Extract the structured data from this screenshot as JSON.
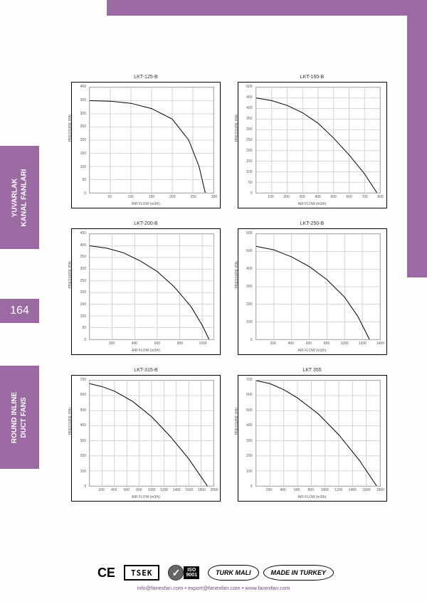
{
  "theme": {
    "accent": "#9b6aa3",
    "accent_dark": "#7a4b8a",
    "page_bg": "#fdfdfb",
    "grid_color": "#cccccc",
    "curve_color": "#000000",
    "chart_border": "#000000"
  },
  "page_number": "164",
  "sidebar": {
    "tab1_line1": "YUVARLAK",
    "tab1_line2": "KANAL FANLARI",
    "tab2_line1": "ROUND INLINE",
    "tab2_line2": "DUCT FANS"
  },
  "axis_labels": {
    "y": "PRESSURE (PA)",
    "x": "AIR FLOW (m3/h)"
  },
  "charts": [
    {
      "title": "LKT-125-B",
      "ylim": [
        0,
        400
      ],
      "ytick_step": 50,
      "xlim": [
        0,
        300
      ],
      "xtick_step": 50,
      "x_tick_start": 50,
      "curve": [
        [
          0,
          350
        ],
        [
          50,
          348
        ],
        [
          100,
          340
        ],
        [
          150,
          320
        ],
        [
          200,
          280
        ],
        [
          240,
          200
        ],
        [
          265,
          100
        ],
        [
          280,
          0
        ]
      ]
    },
    {
      "title": "LKT-160-B",
      "ylim": [
        0,
        500
      ],
      "ytick_step": 50,
      "xlim": [
        0,
        800
      ],
      "xtick_step": 100,
      "x_tick_start": 100,
      "curve": [
        [
          0,
          450
        ],
        [
          100,
          438
        ],
        [
          200,
          415
        ],
        [
          300,
          380
        ],
        [
          400,
          330
        ],
        [
          500,
          260
        ],
        [
          600,
          180
        ],
        [
          700,
          90
        ],
        [
          780,
          0
        ]
      ]
    },
    {
      "title": "LKT-200-B",
      "ylim": [
        0,
        450
      ],
      "ytick_step": 50,
      "xlim": [
        0,
        1100
      ],
      "xtick_step": 200,
      "x_tick_start": 200,
      "curve": [
        [
          0,
          400
        ],
        [
          150,
          390
        ],
        [
          300,
          370
        ],
        [
          450,
          335
        ],
        [
          600,
          290
        ],
        [
          750,
          225
        ],
        [
          900,
          140
        ],
        [
          1000,
          60
        ],
        [
          1060,
          0
        ]
      ]
    },
    {
      "title": "LKT-250-B",
      "ylim": [
        0,
        600
      ],
      "ytick_step": 100,
      "xlim": [
        0,
        1400
      ],
      "xtick_step": 200,
      "x_tick_start": 200,
      "curve": [
        [
          0,
          530
        ],
        [
          200,
          510
        ],
        [
          400,
          470
        ],
        [
          600,
          415
        ],
        [
          800,
          340
        ],
        [
          1000,
          240
        ],
        [
          1150,
          130
        ],
        [
          1280,
          0
        ]
      ]
    },
    {
      "title": "LKT-315-B",
      "ylim": [
        0,
        700
      ],
      "ytick_step": 100,
      "xlim": [
        0,
        2000
      ],
      "xtick_step": 200,
      "x_tick_start": 200,
      "curve": [
        [
          0,
          680
        ],
        [
          200,
          660
        ],
        [
          400,
          630
        ],
        [
          700,
          560
        ],
        [
          1000,
          460
        ],
        [
          1300,
          330
        ],
        [
          1600,
          180
        ],
        [
          1900,
          0
        ]
      ]
    },
    {
      "title": "LKT 355",
      "ylim": [
        0,
        700
      ],
      "ytick_step": 100,
      "xlim": [
        0,
        1800
      ],
      "xtick_step": 200,
      "x_tick_start": 200,
      "curve": [
        [
          0,
          700
        ],
        [
          200,
          680
        ],
        [
          400,
          640
        ],
        [
          600,
          585
        ],
        [
          900,
          480
        ],
        [
          1200,
          340
        ],
        [
          1500,
          170
        ],
        [
          1750,
          0
        ]
      ]
    }
  ],
  "certifications": {
    "ce": "CE",
    "tsek": "TSEK",
    "iso_line1": "ISO",
    "iso_line2": "9001",
    "turk_mali": "TURK MALI",
    "made_in_turkey": "MADE IN TURKEY"
  },
  "contact": "info@fanexfan.com • export@fanexfan.com • www.fanexfan.com"
}
